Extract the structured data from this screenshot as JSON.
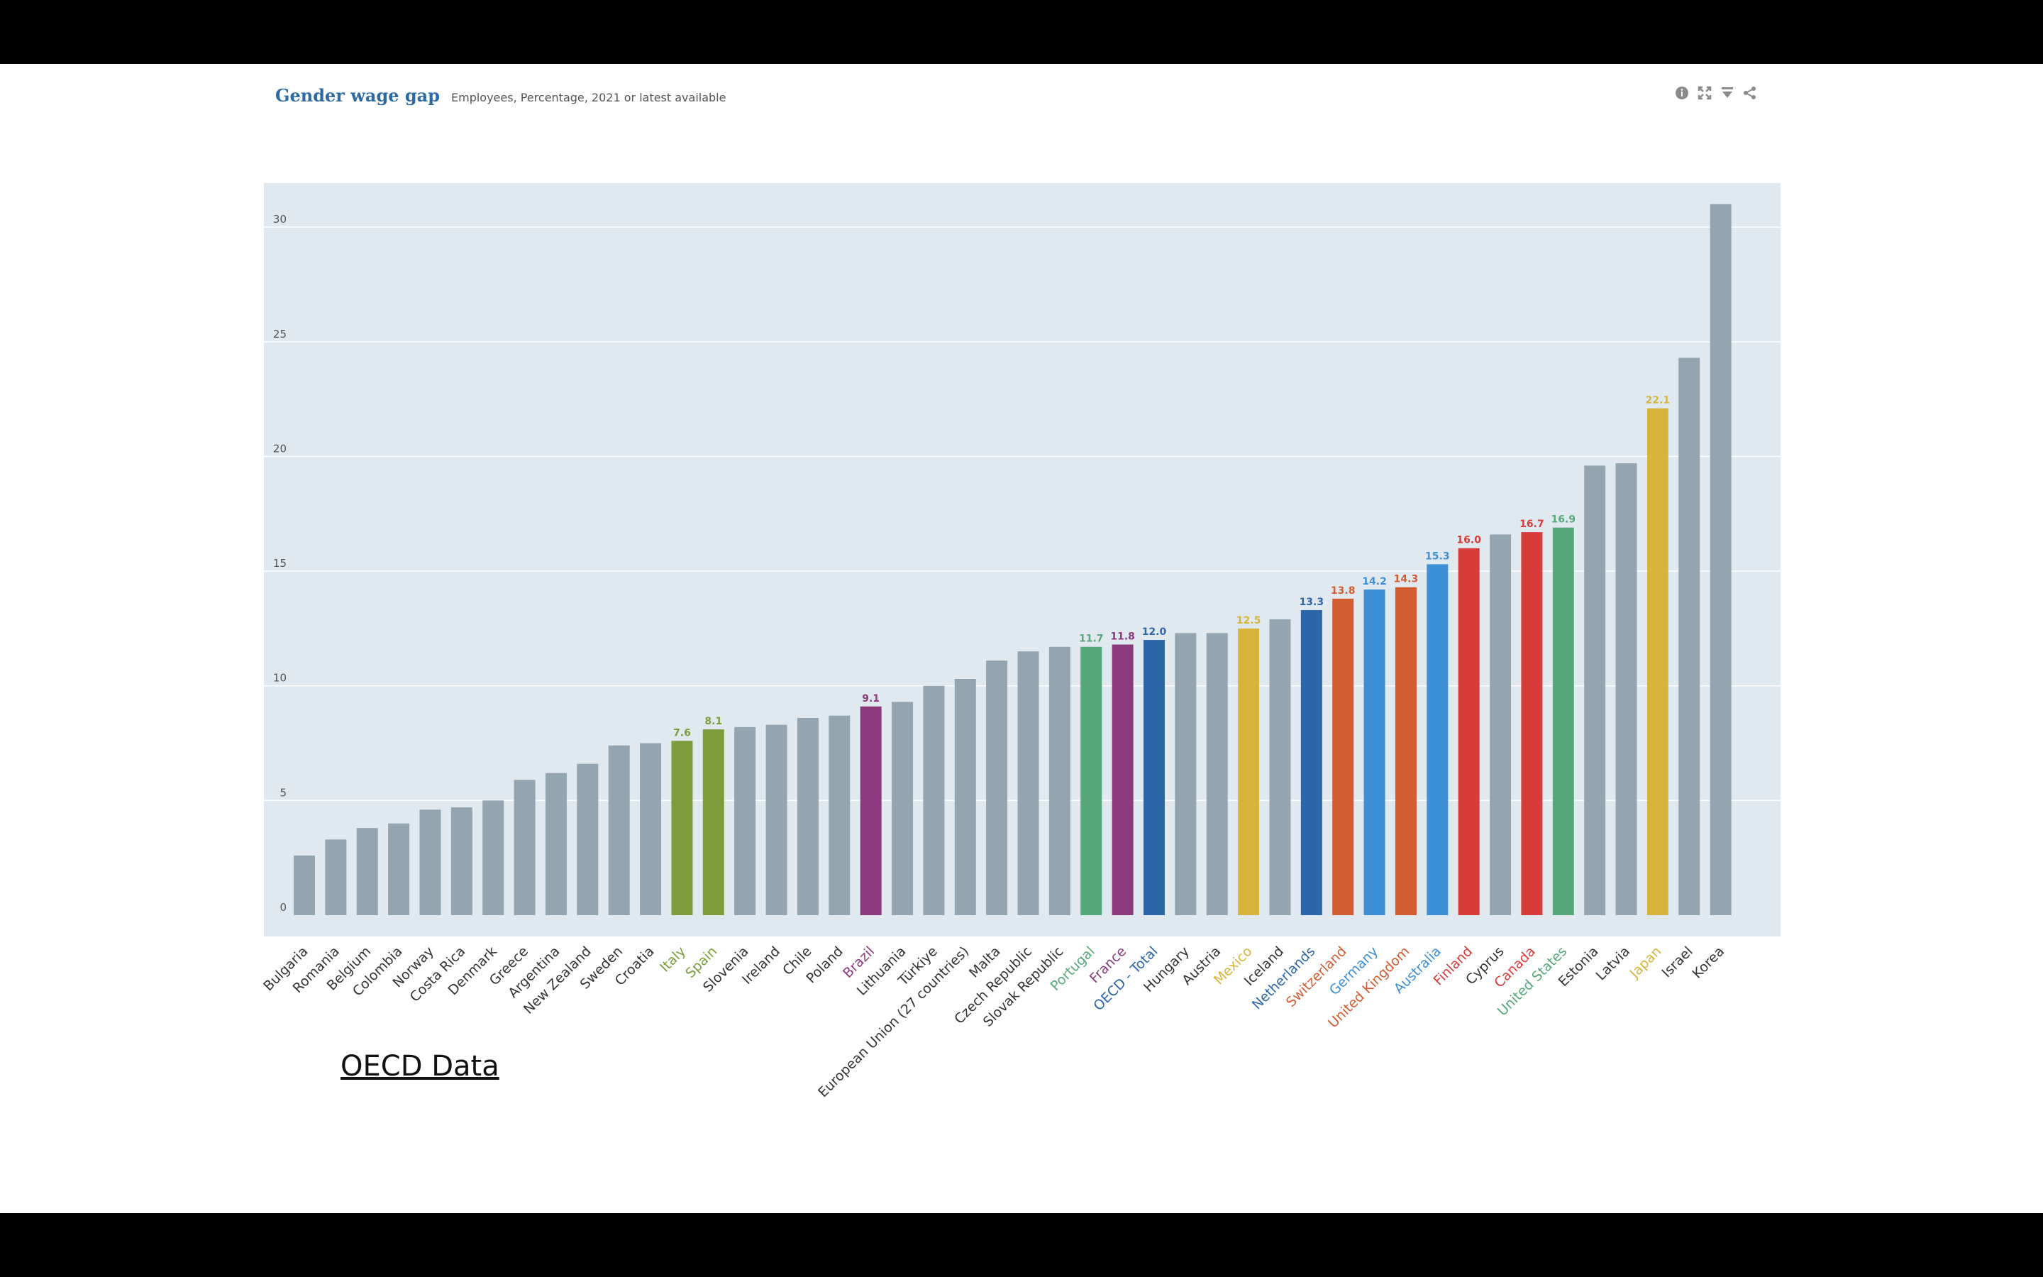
{
  "header": {
    "title": "Gender wage gap",
    "subtitle": "Employees, Percentage, 2021 or latest available"
  },
  "toolbar": {
    "icons": [
      "info-icon",
      "fullscreen-icon",
      "download-icon",
      "share-icon"
    ]
  },
  "footer": {
    "link_text": "OECD Data"
  },
  "colors": {
    "plot_background": "#e1e9f0",
    "default_bar": "#93a5b1",
    "gridline": "#ffffff"
  },
  "chart_data": {
    "type": "bar",
    "title": "Gender wage gap",
    "subtitle": "Employees, Percentage, 2021 or latest available",
    "xlabel": "",
    "ylabel": "",
    "ylim": [
      0,
      30.9
    ],
    "yticks": [
      0,
      5,
      10,
      15,
      20,
      25,
      30
    ],
    "grid": true,
    "categories": [
      "Bulgaria",
      "Romania",
      "Belgium",
      "Colombia",
      "Norway",
      "Costa Rica",
      "Denmark",
      "Greece",
      "Argentina",
      "New Zealand",
      "Sweden",
      "Croatia",
      "Italy",
      "Spain",
      "Slovenia",
      "Ireland",
      "Chile",
      "Poland",
      "Brazil",
      "Lithuania",
      "Türkiye",
      "European Union (27 countries)",
      "Malta",
      "Czech Republic",
      "Slovak Republic",
      "Portugal",
      "France",
      "OECD - Total",
      "Hungary",
      "Austria",
      "Mexico",
      "Iceland",
      "Netherlands",
      "Switzerland",
      "Germany",
      "United Kingdom",
      "Australia",
      "Finland",
      "Cyprus",
      "Canada",
      "United States",
      "Estonia",
      "Latvia",
      "Japan",
      "Israel",
      "Korea"
    ],
    "values": [
      2.6,
      3.3,
      3.8,
      4.0,
      4.6,
      4.7,
      5.0,
      5.9,
      6.2,
      6.6,
      7.4,
      7.5,
      7.6,
      8.1,
      8.2,
      8.3,
      8.6,
      8.7,
      9.1,
      9.3,
      10.0,
      10.3,
      11.1,
      11.5,
      11.7,
      11.7,
      11.8,
      12.0,
      12.3,
      12.3,
      12.5,
      12.9,
      13.3,
      13.8,
      14.2,
      14.3,
      15.3,
      16.0,
      16.6,
      16.7,
      16.9,
      19.6,
      19.7,
      22.1,
      24.3,
      31.0
    ],
    "highlighted": [
      {
        "category": "Italy",
        "color": "#7d9d3d",
        "label": "7.6"
      },
      {
        "category": "Spain",
        "color": "#7d9d3d",
        "label": "8.1"
      },
      {
        "category": "Brazil",
        "color": "#8c3a7e",
        "label": "9.1"
      },
      {
        "category": "Portugal",
        "color": "#56a87a",
        "label": "11.7"
      },
      {
        "category": "France",
        "color": "#8c3a7e",
        "label": "11.8"
      },
      {
        "category": "OECD - Total",
        "color": "#2e66aa",
        "label": "12.0"
      },
      {
        "category": "Mexico",
        "color": "#d9b43d",
        "label": "12.5"
      },
      {
        "category": "Netherlands",
        "color": "#2e66aa",
        "label": "13.3"
      },
      {
        "category": "Switzerland",
        "color": "#d35d32",
        "label": "13.8"
      },
      {
        "category": "Germany",
        "color": "#3d8fd6",
        "label": "14.2"
      },
      {
        "category": "United Kingdom",
        "color": "#d35d32",
        "label": "14.3"
      },
      {
        "category": "Australia",
        "color": "#3d8fd6",
        "label": "15.3"
      },
      {
        "category": "Finland",
        "color": "#d63c3a",
        "label": "16.0"
      },
      {
        "category": "Canada",
        "color": "#d63c3a",
        "label": "16.7"
      },
      {
        "category": "United States",
        "color": "#56a87a",
        "label": "16.9"
      },
      {
        "category": "Japan",
        "color": "#d9b43d",
        "label": "22.1"
      }
    ]
  }
}
